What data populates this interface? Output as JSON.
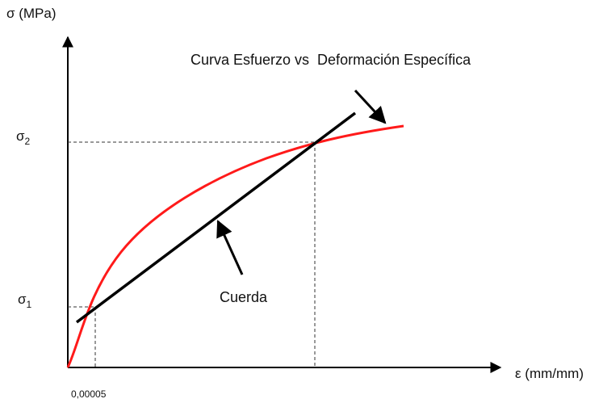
{
  "y_axis_label": "σ (MPa)",
  "x_axis_label": "ε (mm/mm)",
  "sigma2": {
    "symbol": "σ",
    "subscript": "2"
  },
  "sigma1": {
    "symbol": "σ",
    "subscript": "1"
  },
  "x_marker_label": "0,00005",
  "curve_label": "Curva Esfuerzo vs  Deformación Específica",
  "chord_label": "Cuerda"
}
